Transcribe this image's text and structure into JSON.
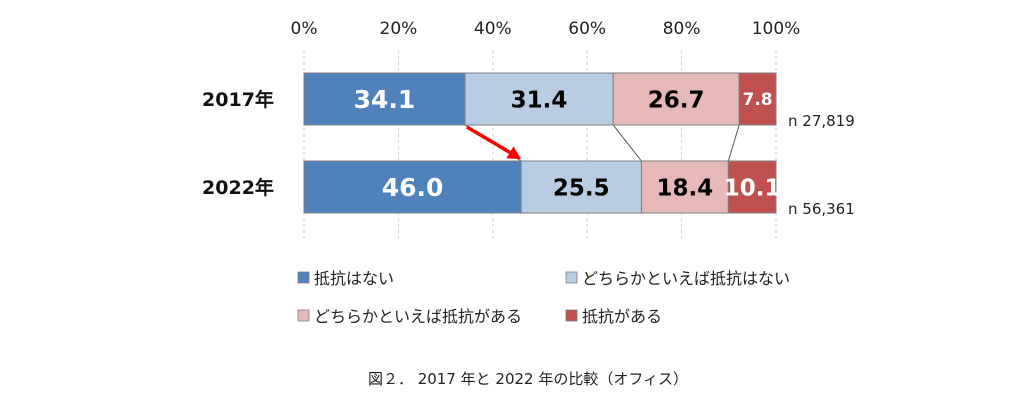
{
  "chart_data": {
    "type": "bar",
    "orientation": "horizontal",
    "stacked": true,
    "percent": true,
    "categories": [
      "2017年",
      "2022年"
    ],
    "n_labels": [
      "n 27,819",
      "n 56,361"
    ],
    "series": [
      {
        "name": "抵抗はない",
        "values": [
          34.1,
          46.0
        ],
        "labels": [
          "34.1",
          "46.0"
        ],
        "color": "#4f81bd",
        "label_color": "#ffffff"
      },
      {
        "name": "どちらかといえば抵抗はない",
        "values": [
          31.4,
          25.5
        ],
        "labels": [
          "31.4",
          "25.5"
        ],
        "color": "#b8cce4",
        "label_color": "#000000"
      },
      {
        "name": "どちらかといえば抵抗がある",
        "values": [
          26.7,
          18.4
        ],
        "labels": [
          "26.7",
          "18.4"
        ],
        "color": "#e6b9b8",
        "label_color": "#000000"
      },
      {
        "name": "抵抗がある",
        "values": [
          7.8,
          10.1
        ],
        "labels": [
          "7.8",
          "10.1"
        ],
        "color": "#c0504d",
        "label_color": "#ffffff"
      }
    ],
    "xlim": [
      0,
      100
    ],
    "x_ticks": [
      "0%",
      "20%",
      "40%",
      "60%",
      "80%",
      "100%"
    ],
    "x_axis_position": "top",
    "grid": true,
    "series_lines": true,
    "arrow_color": "#ff0000",
    "legend_position": "bottom",
    "caption": "図２． 2017 年と 2022 年の比較（オフィス）"
  }
}
